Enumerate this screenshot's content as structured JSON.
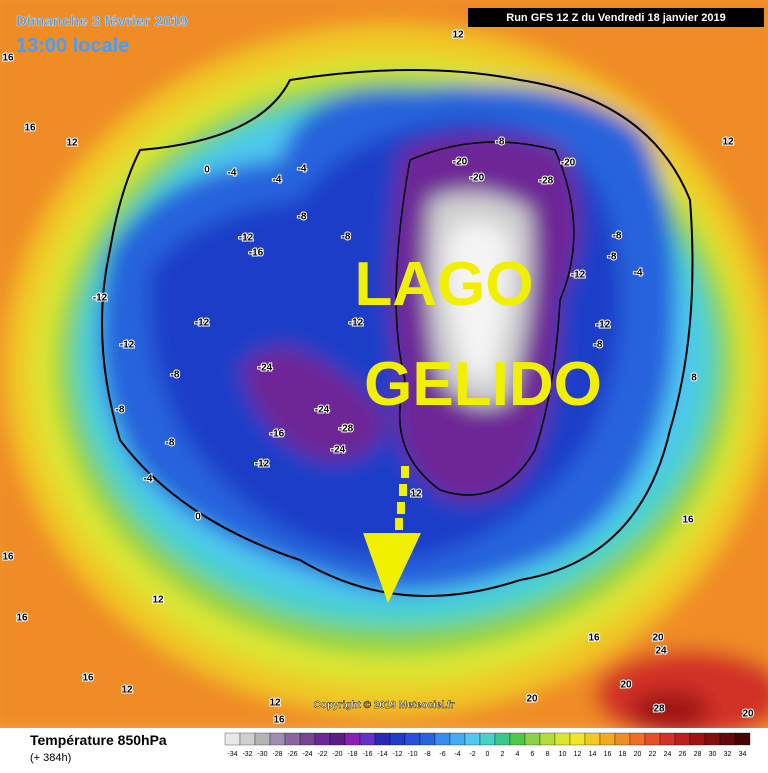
{
  "header": {
    "date": "Dimanche 3 février 2019",
    "time": "13:00 locale",
    "run": "Run GFS 12 Z du Vendredi 18 janvier 2019"
  },
  "overlay": {
    "line1": "LAGO",
    "line2": "GELIDO"
  },
  "copyright": "Copyright © 2019 Meteociel.fr",
  "legend": {
    "title": "Température 850hPa",
    "lead": "(+ 384h)",
    "scale": [
      -34,
      -32,
      -30,
      -28,
      -26,
      -24,
      -22,
      -20,
      -18,
      -16,
      -14,
      -12,
      -10,
      -8,
      -6,
      -4,
      -2,
      0,
      2,
      4,
      6,
      8,
      10,
      12,
      14,
      16,
      18,
      20,
      22,
      24,
      26,
      28,
      30,
      32,
      34
    ],
    "colors": [
      "#e8e8e8",
      "#d0d0d0",
      "#b4b4b4",
      "#a08cb4",
      "#8c64a0",
      "#78468c",
      "#6e2896",
      "#5a1e82",
      "#8c1eb4",
      "#6432c8",
      "#2828b4",
      "#1e3cc8",
      "#2850dc",
      "#2864dc",
      "#3c8cf0",
      "#46aaf0",
      "#50c8f0",
      "#46d2c8",
      "#3cc88c",
      "#50c850",
      "#8cd246",
      "#b4dc3c",
      "#dce632",
      "#f0e628",
      "#f0c828",
      "#f0aa28",
      "#f08c28",
      "#f06e28",
      "#e65028",
      "#d23228",
      "#be1e1e",
      "#a01414",
      "#821010",
      "#640a0a",
      "#460505"
    ]
  },
  "map": {
    "contour_labels": [
      "16",
      "12",
      "16",
      "12",
      "-4",
      "0",
      "-4",
      "-4",
      "-8",
      "-12",
      "-16",
      "-12",
      "-12",
      "-12",
      "-8",
      "-8",
      "-8",
      "-4",
      "-12",
      "-16",
      "-24",
      "-24",
      "-24",
      "-28",
      "-8",
      "-12",
      "-20",
      "-20",
      "-28",
      "-20",
      "-8",
      "-8",
      "-12",
      "-8",
      "-4",
      "-12",
      "-8",
      "12",
      "0",
      "16",
      "12",
      "16",
      "12",
      "16",
      "16",
      "20",
      "24",
      "20",
      "20",
      "28",
      "20",
      "12",
      "16",
      "8",
      "12",
      "16"
    ]
  }
}
